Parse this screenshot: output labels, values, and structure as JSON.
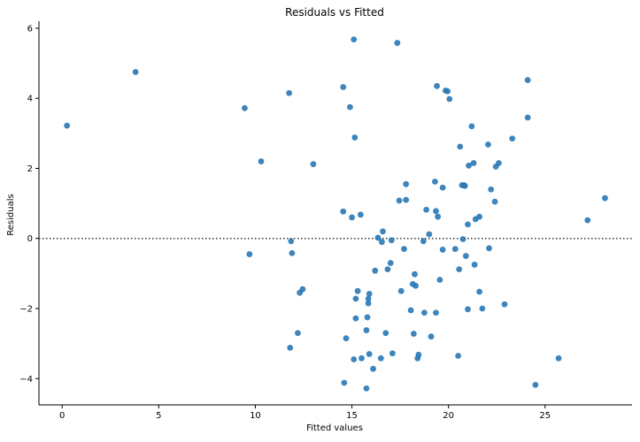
{
  "chart_data": {
    "type": "scatter",
    "title": "Residuals vs Fitted",
    "xlabel": "Fitted values",
    "ylabel": "Residuals",
    "xlim": [
      -1.2,
      29.5
    ],
    "ylim": [
      -4.75,
      6.2
    ],
    "xticks": [
      0,
      5,
      10,
      15,
      20,
      25
    ],
    "yticks": [
      -4,
      -2,
      0,
      2,
      4,
      6
    ],
    "grid": false,
    "reference_line": {
      "y": 0,
      "style": "dotted",
      "color": "#333333"
    },
    "point_color": "#2878b5",
    "series": [
      {
        "points": [
          [
            0.25,
            3.22
          ],
          [
            3.8,
            4.75
          ],
          [
            9.45,
            3.72
          ],
          [
            9.7,
            -0.45
          ],
          [
            10.3,
            2.2
          ],
          [
            11.75,
            4.15
          ],
          [
            11.8,
            -3.12
          ],
          [
            11.85,
            -0.08
          ],
          [
            11.9,
            -0.42
          ],
          [
            12.2,
            -2.7
          ],
          [
            12.3,
            -1.55
          ],
          [
            12.45,
            -1.45
          ],
          [
            13.0,
            2.12
          ],
          [
            14.55,
            4.32
          ],
          [
            14.55,
            0.77
          ],
          [
            14.6,
            -4.12
          ],
          [
            14.7,
            -2.85
          ],
          [
            14.9,
            3.75
          ],
          [
            15.0,
            0.6
          ],
          [
            15.1,
            5.68
          ],
          [
            15.1,
            -3.45
          ],
          [
            15.15,
            2.88
          ],
          [
            15.2,
            -1.72
          ],
          [
            15.2,
            -2.28
          ],
          [
            15.3,
            -1.5
          ],
          [
            15.45,
            0.68
          ],
          [
            15.5,
            -3.42
          ],
          [
            15.75,
            -4.28
          ],
          [
            15.75,
            -2.62
          ],
          [
            15.8,
            -2.25
          ],
          [
            15.85,
            -1.72
          ],
          [
            15.85,
            -1.85
          ],
          [
            15.9,
            -3.3
          ],
          [
            15.9,
            -1.58
          ],
          [
            16.1,
            -3.72
          ],
          [
            16.2,
            -0.92
          ],
          [
            16.35,
            0.02
          ],
          [
            16.5,
            -3.42
          ],
          [
            16.55,
            -0.1
          ],
          [
            16.6,
            0.2
          ],
          [
            16.75,
            -2.7
          ],
          [
            16.85,
            -0.88
          ],
          [
            17.0,
            -0.7
          ],
          [
            17.05,
            -0.05
          ],
          [
            17.1,
            -3.28
          ],
          [
            17.35,
            5.58
          ],
          [
            17.45,
            1.08
          ],
          [
            17.55,
            -1.5
          ],
          [
            17.7,
            -0.3
          ],
          [
            17.8,
            1.55
          ],
          [
            17.8,
            1.1
          ],
          [
            18.05,
            -2.05
          ],
          [
            18.15,
            -1.3
          ],
          [
            18.2,
            -2.72
          ],
          [
            18.25,
            -1.02
          ],
          [
            18.3,
            -1.35
          ],
          [
            18.4,
            -3.42
          ],
          [
            18.45,
            -3.32
          ],
          [
            18.7,
            -0.08
          ],
          [
            18.75,
            -2.12
          ],
          [
            18.85,
            0.82
          ],
          [
            19.0,
            0.12
          ],
          [
            19.1,
            -2.8
          ],
          [
            19.3,
            1.62
          ],
          [
            19.35,
            0.78
          ],
          [
            19.35,
            -2.12
          ],
          [
            19.4,
            4.35
          ],
          [
            19.45,
            0.62
          ],
          [
            19.55,
            -1.18
          ],
          [
            19.7,
            -0.32
          ],
          [
            19.7,
            1.45
          ],
          [
            19.85,
            4.22
          ],
          [
            19.95,
            4.2
          ],
          [
            20.05,
            3.98
          ],
          [
            20.35,
            -0.3
          ],
          [
            20.5,
            -3.35
          ],
          [
            20.55,
            -0.88
          ],
          [
            20.6,
            2.62
          ],
          [
            20.7,
            1.52
          ],
          [
            20.75,
            -0.02
          ],
          [
            20.8,
            1.52
          ],
          [
            20.85,
            1.5
          ],
          [
            20.9,
            -0.5
          ],
          [
            21.0,
            0.4
          ],
          [
            21.0,
            -2.02
          ],
          [
            21.05,
            2.08
          ],
          [
            21.2,
            3.2
          ],
          [
            21.3,
            2.15
          ],
          [
            21.35,
            -0.75
          ],
          [
            21.4,
            0.55
          ],
          [
            21.6,
            0.62
          ],
          [
            21.6,
            -1.52
          ],
          [
            21.75,
            -2.0
          ],
          [
            22.05,
            2.68
          ],
          [
            22.1,
            -0.28
          ],
          [
            22.2,
            1.4
          ],
          [
            22.4,
            1.05
          ],
          [
            22.45,
            2.05
          ],
          [
            22.6,
            2.15
          ],
          [
            22.9,
            -1.88
          ],
          [
            23.3,
            2.85
          ],
          [
            24.1,
            4.52
          ],
          [
            24.1,
            3.45
          ],
          [
            24.5,
            -4.18
          ],
          [
            25.7,
            -3.42
          ],
          [
            27.2,
            0.52
          ],
          [
            28.1,
            1.15
          ]
        ]
      }
    ]
  }
}
